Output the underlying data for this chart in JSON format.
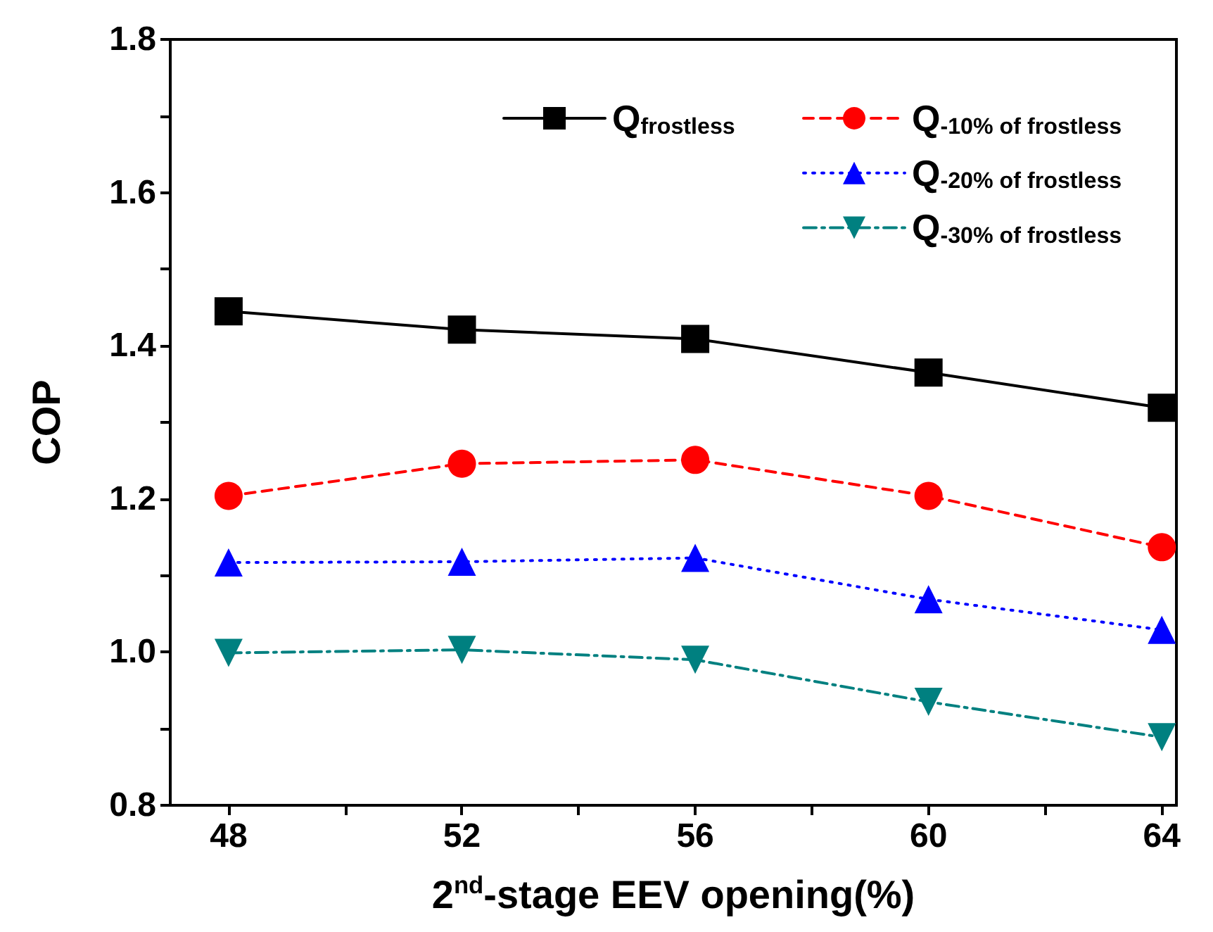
{
  "chart_data": {
    "type": "line",
    "xlabel": "2$^{nd}$-stage EEV opening(%)",
    "ylabel": "COP",
    "x": [
      48,
      52,
      56,
      60,
      64
    ],
    "series": [
      {
        "name": "Q$_{frostless}$",
        "color": "#000000",
        "marker": "square",
        "line_style": "solid",
        "values": [
          1.445,
          1.421,
          1.409,
          1.365,
          1.319
        ]
      },
      {
        "name": "Q$_{-10% of frostless}$",
        "color": "#ff0000",
        "marker": "circle",
        "line_style": "dashed",
        "values": [
          1.204,
          1.246,
          1.251,
          1.204,
          1.137
        ]
      },
      {
        "name": "Q$_{-20% of frostless}$",
        "color": "#0000ff",
        "marker": "triangle",
        "line_style": "dotted",
        "values": [
          1.117,
          1.118,
          1.123,
          1.069,
          1.029
        ]
      },
      {
        "name": "Q$_{-30% of frostless}$",
        "color": "#008080",
        "marker": "triangle_down",
        "line_style": "dashdot",
        "values": [
          0.999,
          1.003,
          0.99,
          0.935,
          0.889
        ]
      }
    ],
    "xlim": [
      47,
      64.25
    ],
    "xticks": [
      48,
      {
        "value": 50,
        "label": null
      },
      52,
      {
        "value": 54,
        "label": null
      },
      56,
      {
        "value": 58,
        "label": null
      },
      60,
      {
        "value": 62,
        "label": null
      },
      64
    ],
    "ylim": [
      0.8,
      1.8
    ],
    "yticks": [
      {
        "value": 0.8,
        "label": "0.8"
      },
      {
        "value": 0.9,
        "label": null
      },
      {
        "value": 1.0,
        "label": "1.0"
      },
      {
        "value": 1.1,
        "label": null
      },
      {
        "value": 1.2,
        "label": "1.2"
      },
      {
        "value": 1.3,
        "label": null
      },
      {
        "value": 1.4,
        "label": "1.4"
      },
      {
        "value": 1.5,
        "label": null
      },
      {
        "value": 1.6,
        "label": "1.6"
      },
      {
        "value": 1.7,
        "label": null
      },
      {
        "value": 1.8,
        "label": "1.8"
      }
    ],
    "grid": false,
    "legend": "top right"
  }
}
